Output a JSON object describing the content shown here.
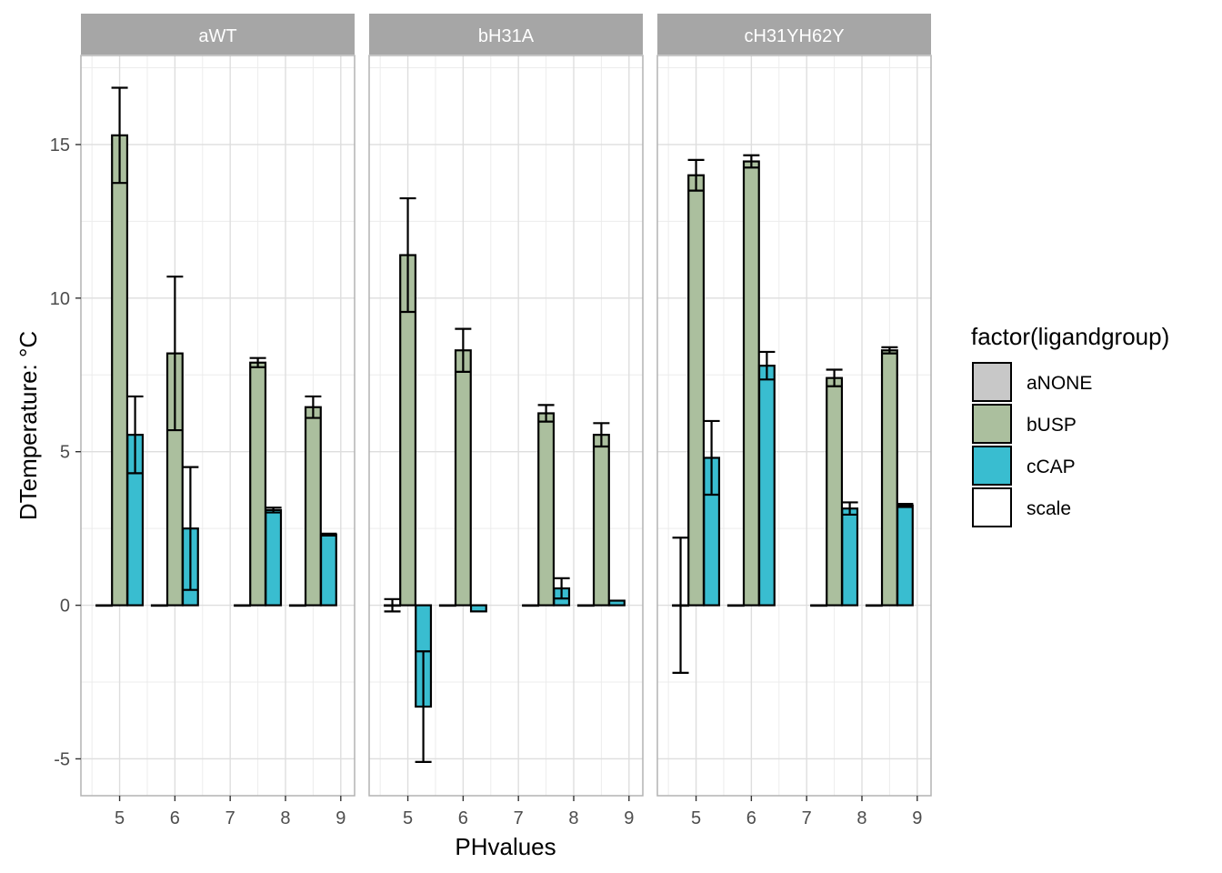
{
  "chart_data": {
    "type": "bar",
    "xlabel": "PHvalues",
    "ylabel": "DTemperature: °C",
    "x_ticks": [
      5,
      6,
      7,
      8,
      9
    ],
    "y_ticks": [
      -5,
      0,
      5,
      10,
      15
    ],
    "xlim": [
      4.3,
      9.25
    ],
    "ylim": [
      -6.2,
      17.9
    ],
    "grid": true,
    "legend": {
      "title": "factor(ligandgroup)",
      "placement": "right",
      "entries": [
        {
          "name": "aNONE",
          "color": "#c8c8c8"
        },
        {
          "name": "bUSP",
          "color": "#abbf9e"
        },
        {
          "name": "cCAP",
          "color": "#39bdd0"
        },
        {
          "name": "scale",
          "color": "#ffffff"
        }
      ]
    },
    "colors": {
      "aNONE": "#c8c8c8",
      "bUSP": "#abbf9e",
      "cCAP": "#39bdd0",
      "strip": "#a6a6a6",
      "grid": "#dedede",
      "panel_border": "#b3b3b3"
    },
    "panels": [
      {
        "strip": "aWT",
        "ph": [
          5,
          6,
          7.5,
          8.5
        ],
        "aNONE": {
          "values": [
            0,
            0,
            0,
            0
          ],
          "errors": [
            0,
            0,
            0,
            0
          ]
        },
        "bUSP": {
          "values": [
            15.3,
            8.2,
            7.9,
            6.45
          ],
          "errors": [
            1.55,
            2.5,
            0.15,
            0.35
          ]
        },
        "cCAP": {
          "values": [
            5.55,
            2.5,
            3.1,
            2.3
          ],
          "errors": [
            1.25,
            2.0,
            0.08,
            0.03
          ]
        }
      },
      {
        "strip": "bH31A",
        "ph": [
          5,
          6,
          7.5,
          8.5
        ],
        "aNONE": {
          "values": [
            0,
            0,
            0,
            0
          ],
          "errors": [
            0.2,
            0,
            0,
            0
          ]
        },
        "bUSP": {
          "values": [
            11.4,
            8.3,
            6.25,
            5.55
          ],
          "errors": [
            1.85,
            0.7,
            0.27,
            0.38
          ]
        },
        "cCAP": {
          "values": [
            -3.3,
            -0.2,
            0.55,
            0.15
          ],
          "errors": [
            1.8,
            0,
            0.33,
            0
          ]
        }
      },
      {
        "strip": "cH31YH62Y",
        "ph": [
          5,
          6,
          7.5,
          8.5
        ],
        "aNONE": {
          "values": [
            0,
            0,
            0,
            0
          ],
          "errors": [
            2.2,
            0,
            0,
            0
          ]
        },
        "bUSP": {
          "values": [
            14.0,
            14.45,
            7.4,
            8.3
          ],
          "errors": [
            0.5,
            0.2,
            0.27,
            0.1
          ]
        },
        "cCAP": {
          "values": [
            4.8,
            7.8,
            3.15,
            3.25
          ],
          "errors": [
            1.2,
            0.45,
            0.2,
            0.05
          ]
        }
      }
    ]
  }
}
